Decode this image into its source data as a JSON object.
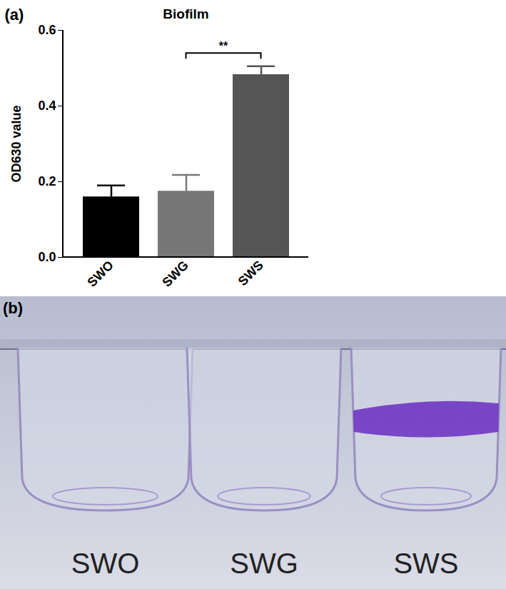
{
  "chart_data": {
    "type": "bar",
    "panel_label": "(a)",
    "title": "Biofilm",
    "categories": [
      "SWO",
      "SWG",
      "SWS"
    ],
    "values": [
      0.16,
      0.175,
      0.483
    ],
    "errors": [
      0.03,
      0.043,
      0.022
    ],
    "colors": [
      "#000000",
      "#777777",
      "#555555"
    ],
    "y_label": "OD630 value",
    "ylim": [
      0,
      0.6
    ],
    "yticks": [
      {
        "value": 0,
        "label": "0.0"
      },
      0.2,
      0.4,
      0.6
    ],
    "annotations": [
      {
        "text": "**",
        "from": "SWG",
        "to": "SWS"
      }
    ]
  },
  "panel_b": {
    "label": "(b)",
    "wells": [
      "SWO",
      "SWG",
      "SWS"
    ]
  }
}
